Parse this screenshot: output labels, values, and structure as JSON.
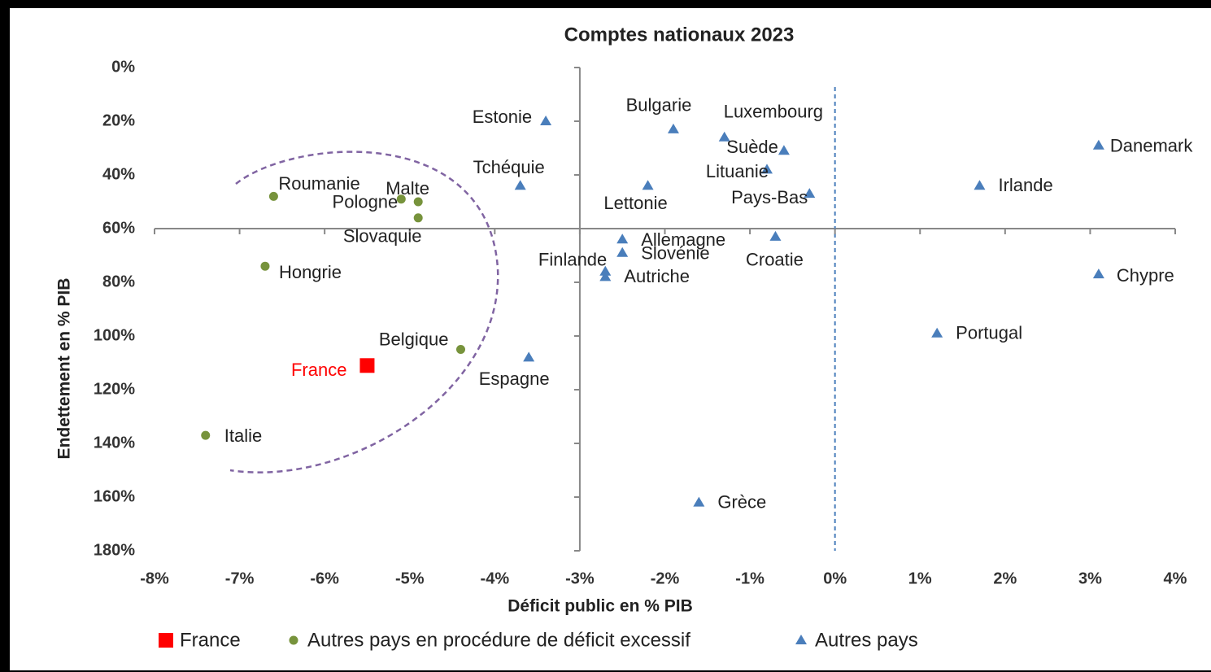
{
  "chart_data": {
    "type": "scatter",
    "title": "Comptes nationaux 2023",
    "xlabel": "Déficit public en % PIB",
    "ylabel": "Endettement en % PIB",
    "xlim": [
      -8,
      4
    ],
    "ylim": [
      0,
      180
    ],
    "y_reversed": true,
    "x_axis_at": 60,
    "y_axis_at": -3,
    "reference_x": 0,
    "xticks": [
      {
        "value": -8,
        "label": "-8%"
      },
      {
        "value": -7,
        "label": "-7%"
      },
      {
        "value": -6,
        "label": "-6%"
      },
      {
        "value": -5,
        "label": "-5%"
      },
      {
        "value": -4,
        "label": "-4%"
      },
      {
        "value": -3,
        "label": "-3%"
      },
      {
        "value": -2,
        "label": "-2%"
      },
      {
        "value": -1,
        "label": "-1%"
      },
      {
        "value": 0,
        "label": "0%"
      },
      {
        "value": 1,
        "label": "1%"
      },
      {
        "value": 2,
        "label": "2%"
      },
      {
        "value": 3,
        "label": "3%"
      },
      {
        "value": 4,
        "label": "4%"
      }
    ],
    "yticks": [
      {
        "value": 0,
        "label": "0%"
      },
      {
        "value": 20,
        "label": "20%"
      },
      {
        "value": 40,
        "label": "40%"
      },
      {
        "value": 60,
        "label": "60%"
      },
      {
        "value": 80,
        "label": "80%"
      },
      {
        "value": 100,
        "label": "100%"
      },
      {
        "value": 120,
        "label": "120%"
      },
      {
        "value": 140,
        "label": "140%"
      },
      {
        "value": 160,
        "label": "160%"
      },
      {
        "value": 180,
        "label": "180%"
      }
    ],
    "series": [
      {
        "name": "France",
        "color": "#ff0000",
        "marker": "square",
        "x": [
          -5.5
        ],
        "values": [
          111
        ],
        "labels": [
          "France"
        ]
      },
      {
        "name": "Autres pays en procédure de déficit excessif",
        "color": "#77933c",
        "marker": "circle",
        "x": [
          -6.6,
          -4.9,
          -5.1,
          -4.9,
          -6.7,
          -4.4,
          -7.4
        ],
        "values": [
          48,
          50,
          49,
          56,
          74,
          105,
          137
        ],
        "labels": [
          "Roumanie",
          "Malte",
          "Pologne",
          "Slovaquie",
          "Hongrie",
          "Belgique",
          "Italie"
        ]
      },
      {
        "name": "Autres pays",
        "color": "#4a7ebb",
        "marker": "triangle",
        "x": [
          -3.4,
          -1.9,
          -1.3,
          -0.6,
          -3.7,
          -2.2,
          -0.8,
          -0.3,
          3.1,
          1.7,
          -2.5,
          -0.7,
          -2.5,
          -2.7,
          -2.7,
          3.1,
          1.2,
          -3.6,
          -1.6
        ],
        "values": [
          20,
          23,
          26,
          31,
          44,
          44,
          38,
          47,
          29,
          44,
          64,
          63,
          69,
          76,
          78,
          77,
          99,
          108,
          162
        ],
        "labels": [
          "Estonie",
          "Bulgarie",
          "Luxembourg",
          "Suède",
          "Tchéquie",
          "Lettonie",
          "Lituanie",
          "Pays-Bas",
          "Danemark",
          "Irlande",
          "Allemagne",
          "Croatie",
          "Slovénie",
          "Finlande",
          "Autriche",
          "Chypre",
          "Portugal",
          "Espagne",
          "Grèce"
        ]
      }
    ]
  }
}
